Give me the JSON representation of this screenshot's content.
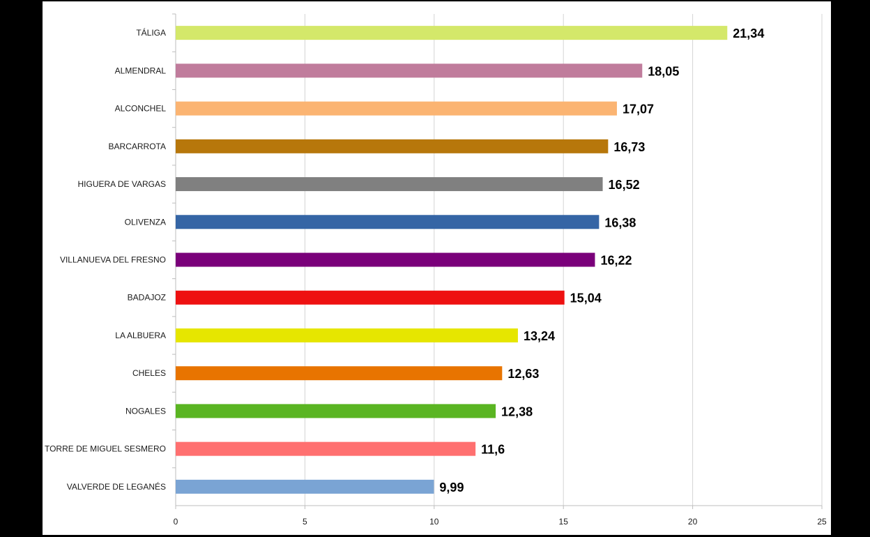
{
  "chart_data": {
    "type": "bar",
    "orientation": "horizontal",
    "categories": [
      "TÁLIGA",
      "ALMENDRAL",
      "ALCONCHEL",
      "BARCARROTA",
      "HIGUERA DE VARGAS",
      "OLIVENZA",
      "VILLANUEVA DEL FRESNO",
      "BADAJOZ",
      "LA ALBUERA",
      "CHELES",
      "NOGALES",
      "TORRE DE MIGUEL SESMERO",
      "VALVERDE DE LEGANÉS"
    ],
    "values": [
      21.34,
      18.05,
      17.07,
      16.73,
      16.52,
      16.38,
      16.22,
      15.04,
      13.24,
      12.63,
      12.38,
      11.6,
      9.99
    ],
    "value_labels": [
      "21,34",
      "18,05",
      "17,07",
      "16,73",
      "16,52",
      "16,38",
      "16,22",
      "15,04",
      "13,24",
      "12,63",
      "12,38",
      "11,6",
      "9,99"
    ],
    "colors": [
      "#d4e86a",
      "#c07c9c",
      "#fbb472",
      "#b7770b",
      "#808080",
      "#3565a5",
      "#7a007a",
      "#ee1111",
      "#e6e600",
      "#e87400",
      "#5ab522",
      "#ff7070",
      "#7aa4d4"
    ],
    "xlim": [
      0,
      25
    ],
    "xticks": [
      0,
      5,
      10,
      15,
      20,
      25
    ],
    "grid": true,
    "title": "",
    "xlabel": "",
    "ylabel": ""
  }
}
